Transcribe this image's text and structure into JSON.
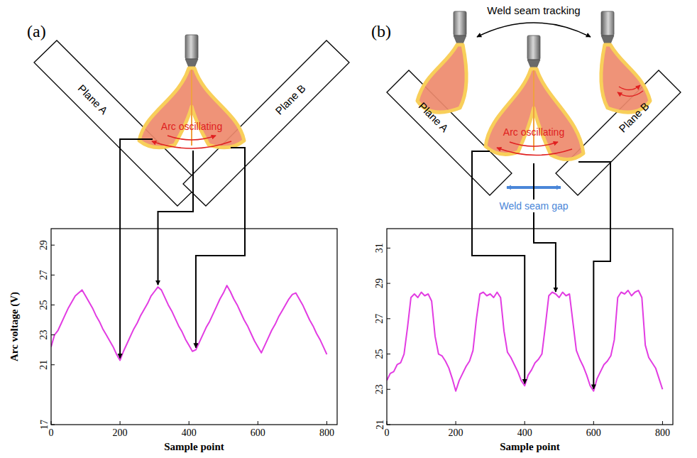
{
  "chart_data": [
    {
      "type": "line",
      "title": "(a)",
      "x_label": "Sample point",
      "y_label": "Arc voltage (V)",
      "annotations": [
        "Plane A",
        "Plane B",
        "Arc oscillating"
      ],
      "color": "#e23ce2",
      "grid": false,
      "xlim": [
        0,
        830
      ],
      "ylim": [
        17,
        30.1
      ],
      "xticks": [
        0,
        200,
        400,
        600,
        800
      ],
      "yticks": [
        17,
        21,
        23,
        25,
        27,
        29
      ],
      "x": [
        0,
        10,
        20,
        30,
        40,
        50,
        60,
        70,
        80,
        90,
        100,
        110,
        120,
        130,
        140,
        150,
        160,
        170,
        180,
        190,
        200,
        210,
        220,
        230,
        240,
        250,
        260,
        270,
        280,
        290,
        300,
        310,
        320,
        330,
        340,
        350,
        360,
        370,
        380,
        390,
        400,
        410,
        420,
        430,
        440,
        450,
        460,
        470,
        480,
        490,
        500,
        510,
        520,
        530,
        540,
        550,
        560,
        570,
        580,
        590,
        600,
        610,
        620,
        630,
        640,
        650,
        660,
        670,
        680,
        690,
        700,
        710,
        720,
        730,
        740,
        750,
        760,
        770,
        780,
        790,
        800
      ],
      "values": [
        22.2,
        23.0,
        23.3,
        23.8,
        24.3,
        24.8,
        25.2,
        25.6,
        25.8,
        26.0,
        25.6,
        25.2,
        24.8,
        24.3,
        23.9,
        23.4,
        23.0,
        22.6,
        22.2,
        21.7,
        21.3,
        21.9,
        22.4,
        22.9,
        23.4,
        23.8,
        24.3,
        24.7,
        25.1,
        25.6,
        25.9,
        26.2,
        26.0,
        25.5,
        25.0,
        24.6,
        24.1,
        23.6,
        23.2,
        22.7,
        22.3,
        21.9,
        22.0,
        22.5,
        23.0,
        23.5,
        23.9,
        24.4,
        24.9,
        25.4,
        25.8,
        26.3,
        25.9,
        25.4,
        25.0,
        24.5,
        24.0,
        23.6,
        23.1,
        22.6,
        22.2,
        21.8,
        22.3,
        22.8,
        23.3,
        23.7,
        24.2,
        24.6,
        25.0,
        25.4,
        25.7,
        25.8,
        25.4,
        25.0,
        24.5,
        24.0,
        23.6,
        23.1,
        22.7,
        22.2,
        21.7
      ]
    },
    {
      "type": "line",
      "title": "(b)",
      "x_label": "Sample point",
      "annotations": [
        "Weld seam tracking",
        "Plane A",
        "Plane B",
        "Arc oscillating",
        "Weld seam gap"
      ],
      "color": "#e23ce2",
      "grid": false,
      "xlim": [
        0,
        830
      ],
      "ylim": [
        21,
        32.1
      ],
      "xticks": [
        0,
        200,
        400,
        600,
        800
      ],
      "yticks": [
        21,
        23,
        25,
        27,
        29,
        31
      ],
      "x": [
        0,
        10,
        20,
        30,
        40,
        50,
        60,
        70,
        80,
        90,
        100,
        110,
        120,
        130,
        140,
        150,
        160,
        170,
        180,
        190,
        200,
        210,
        220,
        230,
        240,
        250,
        260,
        270,
        280,
        290,
        300,
        310,
        320,
        330,
        340,
        350,
        360,
        370,
        380,
        390,
        400,
        410,
        420,
        430,
        440,
        450,
        460,
        470,
        480,
        490,
        500,
        510,
        520,
        530,
        540,
        550,
        560,
        570,
        580,
        590,
        600,
        610,
        620,
        630,
        640,
        650,
        660,
        670,
        680,
        690,
        700,
        710,
        720,
        730,
        740,
        750,
        760,
        770,
        780,
        790,
        800
      ],
      "values": [
        23.5,
        23.9,
        24.0,
        24.4,
        24.5,
        25.0,
        26.5,
        28.2,
        28.4,
        28.2,
        28.5,
        28.3,
        28.4,
        28.0,
        26.0,
        25.0,
        24.9,
        24.6,
        24.2,
        23.6,
        22.9,
        23.5,
        23.9,
        24.3,
        24.6,
        25.2,
        27.0,
        28.4,
        28.5,
        28.3,
        28.4,
        28.2,
        28.5,
        28.2,
        26.3,
        25.1,
        24.8,
        24.4,
        24.0,
        23.5,
        23.2,
        23.8,
        24.1,
        24.5,
        24.7,
        25.0,
        26.6,
        28.3,
        28.5,
        28.4,
        28.2,
        28.5,
        28.3,
        28.4,
        26.8,
        25.2,
        24.7,
        24.3,
        23.8,
        23.2,
        22.9,
        23.6,
        24.0,
        24.4,
        24.6,
        24.9,
        25.8,
        28.2,
        28.5,
        28.4,
        28.6,
        28.3,
        28.5,
        28.6,
        28.2,
        25.5,
        24.8,
        24.5,
        24.2,
        23.6,
        23.0
      ]
    }
  ]
}
